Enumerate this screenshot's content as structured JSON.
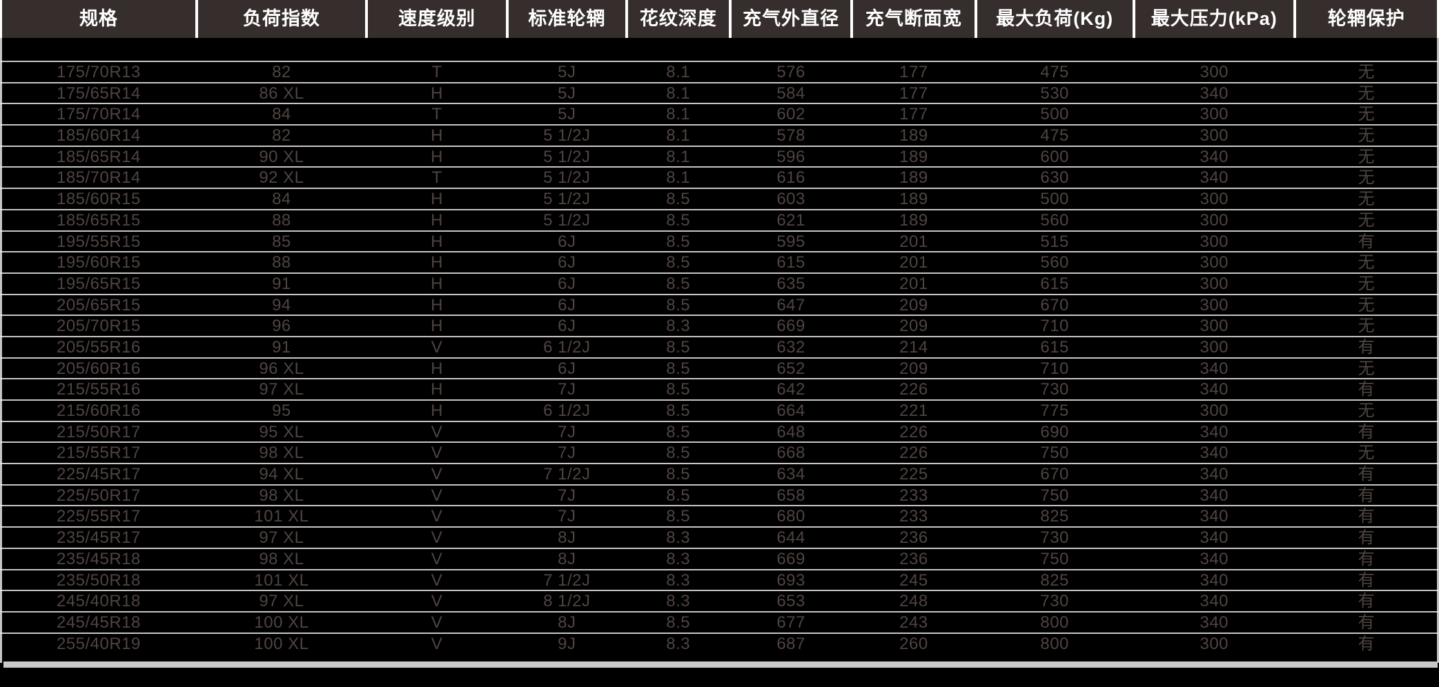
{
  "table": {
    "columns": [
      "规格",
      "负荷指数",
      "速度级别",
      "标准轮辋",
      "花纹深度",
      "充气外直径",
      "充气断面宽",
      "最大负荷(Kg)",
      "最大压力(kPa)",
      "轮辋保护"
    ],
    "rows": [
      [
        "175/70R13",
        "82",
        "T",
        "5J",
        "8.1",
        "576",
        "177",
        "475",
        "300",
        "无"
      ],
      [
        "175/65R14",
        "86 XL",
        "H",
        "5J",
        "8.1",
        "584",
        "177",
        "530",
        "340",
        "无"
      ],
      [
        "175/70R14",
        "84",
        "T",
        "5J",
        "8.1",
        "602",
        "177",
        "500",
        "300",
        "无"
      ],
      [
        "185/60R14",
        "82",
        "H",
        "5 1/2J",
        "8.1",
        "578",
        "189",
        "475",
        "300",
        "无"
      ],
      [
        "185/65R14",
        "90 XL",
        "H",
        "5 1/2J",
        "8.1",
        "596",
        "189",
        "600",
        "340",
        "无"
      ],
      [
        "185/70R14",
        "92 XL",
        "T",
        "5 1/2J",
        "8.1",
        "616",
        "189",
        "630",
        "340",
        "无"
      ],
      [
        "185/60R15",
        "84",
        "H",
        "5 1/2J",
        "8.5",
        "603",
        "189",
        "500",
        "300",
        "无"
      ],
      [
        "185/65R15",
        "88",
        "H",
        "5 1/2J",
        "8.5",
        "621",
        "189",
        "560",
        "300",
        "无"
      ],
      [
        "195/55R15",
        "85",
        "H",
        "6J",
        "8.5",
        "595",
        "201",
        "515",
        "300",
        "有"
      ],
      [
        "195/60R15",
        "88",
        "H",
        "6J",
        "8.5",
        "615",
        "201",
        "560",
        "300",
        "无"
      ],
      [
        "195/65R15",
        "91",
        "H",
        "6J",
        "8.5",
        "635",
        "201",
        "615",
        "300",
        "无"
      ],
      [
        "205/65R15",
        "94",
        "H",
        "6J",
        "8.5",
        "647",
        "209",
        "670",
        "300",
        "无"
      ],
      [
        "205/70R15",
        "96",
        "H",
        "6J",
        "8.3",
        "669",
        "209",
        "710",
        "300",
        "无"
      ],
      [
        "205/55R16",
        "91",
        "V",
        "6 1/2J",
        "8.5",
        "632",
        "214",
        "615",
        "300",
        "有"
      ],
      [
        "205/60R16",
        "96 XL",
        "H",
        "6J",
        "8.5",
        "652",
        "209",
        "710",
        "340",
        "无"
      ],
      [
        "215/55R16",
        "97 XL",
        "H",
        "7J",
        "8.5",
        "642",
        "226",
        "730",
        "340",
        "有"
      ],
      [
        "215/60R16",
        "95",
        "H",
        "6 1/2J",
        "8.5",
        "664",
        "221",
        "775",
        "300",
        "无"
      ],
      [
        "215/50R17",
        "95 XL",
        "V",
        "7J",
        "8.5",
        "648",
        "226",
        "690",
        "340",
        "有"
      ],
      [
        "215/55R17",
        "98 XL",
        "V",
        "7J",
        "8.5",
        "668",
        "226",
        "750",
        "340",
        "无"
      ],
      [
        "225/45R17",
        "94 XL",
        "V",
        "7 1/2J",
        "8.5",
        "634",
        "225",
        "670",
        "340",
        "有"
      ],
      [
        "225/50R17",
        "98 XL",
        "V",
        "7J",
        "8.5",
        "658",
        "233",
        "750",
        "340",
        "有"
      ],
      [
        "225/55R17",
        "101 XL",
        "V",
        "7J",
        "8.5",
        "680",
        "233",
        "825",
        "340",
        "有"
      ],
      [
        "235/45R17",
        "97 XL",
        "V",
        "8J",
        "8.3",
        "644",
        "236",
        "730",
        "340",
        "有"
      ],
      [
        "235/45R18",
        "98 XL",
        "V",
        "8J",
        "8.3",
        "669",
        "236",
        "750",
        "340",
        "有"
      ],
      [
        "235/50R18",
        "101 XL",
        "V",
        "7 1/2J",
        "8.3",
        "693",
        "245",
        "825",
        "340",
        "有"
      ],
      [
        "245/40R18",
        "97 XL",
        "V",
        "8 1/2J",
        "8.3",
        "653",
        "248",
        "730",
        "340",
        "有"
      ],
      [
        "245/45R18",
        "100 XL",
        "V",
        "8J",
        "8.5",
        "677",
        "243",
        "800",
        "340",
        "有"
      ],
      [
        "255/40R19",
        "100 XL",
        "V",
        "9J",
        "8.3",
        "687",
        "260",
        "800",
        "300",
        "有"
      ]
    ]
  },
  "colors": {
    "background": "#000000",
    "header_background": "#352e2c",
    "header_text": "#ffffff",
    "row_text": "#4f4441",
    "row_separator": "#c6c6c6",
    "bottom_bar": "#c9c9c9"
  }
}
